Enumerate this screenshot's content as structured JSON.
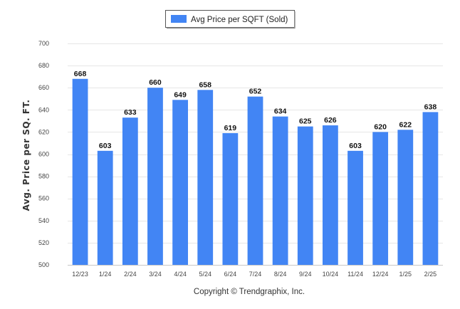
{
  "chart_data": {
    "type": "bar",
    "categories": [
      "12/23",
      "1/24",
      "2/24",
      "3/24",
      "4/24",
      "5/24",
      "6/24",
      "7/24",
      "8/24",
      "9/24",
      "10/24",
      "11/24",
      "12/24",
      "1/25",
      "2/25"
    ],
    "series": [
      {
        "name": "Avg Price per SQFT (Sold)",
        "values": [
          668,
          603,
          633,
          660,
          649,
          658,
          619,
          652,
          634,
          625,
          626,
          603,
          620,
          622,
          638
        ],
        "color": "#4285f4"
      }
    ],
    "title": "",
    "xlabel": "",
    "ylabel": "Avg. Price per SQ. FT.",
    "ylim": [
      500,
      700
    ],
    "yticks": [
      500,
      520,
      540,
      560,
      580,
      600,
      620,
      640,
      660,
      680,
      700
    ],
    "grid": true,
    "legend_position": "top-center",
    "data_labels": true
  },
  "footer": {
    "copyright": "Copyright © Trendgraphix, Inc."
  }
}
